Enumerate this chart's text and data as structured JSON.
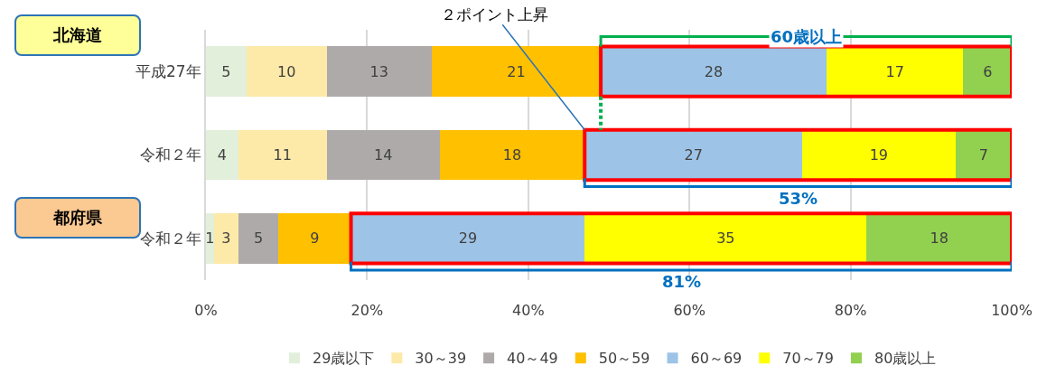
{
  "chart_data": {
    "type": "bar",
    "orientation": "horizontal",
    "stacked": true,
    "categories": [
      "平成27年",
      "令和２年",
      "令和２年"
    ],
    "series": [
      {
        "name": "29歳以下",
        "color": "#e2efda",
        "values": [
          5,
          4,
          1
        ]
      },
      {
        "name": "30～39",
        "color": "#fde9a8",
        "values": [
          10,
          11,
          3
        ]
      },
      {
        "name": "40～49",
        "color": "#aeaaaa",
        "values": [
          13,
          14,
          5
        ]
      },
      {
        "name": "50～59",
        "color": "#ffc000",
        "values": [
          21,
          18,
          9
        ]
      },
      {
        "name": "60～69",
        "color": "#9dc3e6",
        "values": [
          28,
          27,
          29
        ]
      },
      {
        "name": "70～79",
        "color": "#ffff00",
        "values": [
          17,
          19,
          35
        ]
      },
      {
        "name": "80歳以上",
        "color": "#92d050",
        "values": [
          6,
          7,
          18
        ]
      }
    ],
    "xlim": [
      0,
      100
    ],
    "xticks": [
      {
        "value": 0,
        "label": "0%"
      },
      {
        "value": 20,
        "label": "20%"
      },
      {
        "value": 40,
        "label": "40%"
      },
      {
        "value": 60,
        "label": "60%"
      },
      {
        "value": 80,
        "label": "80%"
      },
      {
        "value": 100,
        "label": "100%"
      }
    ],
    "grid": "x",
    "legend": "bottom",
    "data_labels": true,
    "annotations": [
      "北海道",
      "都府県",
      {
        "text": "２ポイント上昇",
        "x": 47
      },
      "60歳以上",
      "53%",
      "81%"
    ]
  }
}
